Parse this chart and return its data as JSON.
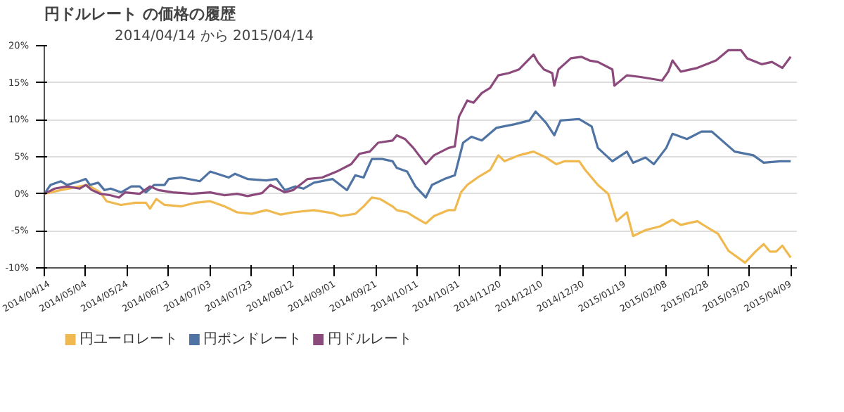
{
  "chart_data": {
    "type": "line",
    "title": "円ドルレート の価格の履歴",
    "subtitle": "2014/04/14 から 2015/04/14",
    "xlim": [
      "2014-04-14",
      "2015-04-12"
    ],
    "xticks": [
      {
        "value": "2014-04-14",
        "label": "2014/04/14"
      },
      {
        "value": "2014-05-04",
        "label": "2014/05/04"
      },
      {
        "value": "2014-05-24",
        "label": "2014/05/24"
      },
      {
        "value": "2014-06-13",
        "label": "2014/06/13"
      },
      {
        "value": "2014-07-03",
        "label": "2014/07/03"
      },
      {
        "value": "2014-07-23",
        "label": "2014/07/23"
      },
      {
        "value": "2014-08-12",
        "label": "2014/08/12"
      },
      {
        "value": "2014-09-01",
        "label": "2014/09/01"
      },
      {
        "value": "2014-09-21",
        "label": "2014/09/21"
      },
      {
        "value": "2014-10-11",
        "label": "2014/10/11"
      },
      {
        "value": "2014-10-31",
        "label": "2014/10/31"
      },
      {
        "value": "2014-11-20",
        "label": "2014/11/20"
      },
      {
        "value": "2014-12-10",
        "label": "2014/12/10"
      },
      {
        "value": "2014-12-30",
        "label": "2014/12/30"
      },
      {
        "value": "2015-01-19",
        "label": "2015/01/19"
      },
      {
        "value": "2015-02-08",
        "label": "2015/02/08"
      },
      {
        "value": "2015-02-28",
        "label": "2015/02/28"
      },
      {
        "value": "2015-03-20",
        "label": "2015/03/20"
      },
      {
        "value": "2015-04-09",
        "label": "2015/04/09"
      }
    ],
    "ylim": [
      -10,
      20
    ],
    "yticks": [
      {
        "value": -10,
        "label": "-10%"
      },
      {
        "value": -5,
        "label": "-5%"
      },
      {
        "value": 0,
        "label": "0%"
      },
      {
        "value": 5,
        "label": "5%"
      },
      {
        "value": 10,
        "label": "10%"
      },
      {
        "value": 15,
        "label": "15%"
      },
      {
        "value": 20,
        "label": "20%"
      }
    ],
    "grid": "y",
    "legend": "bottom",
    "marker": "none",
    "line_style": "solid",
    "series": [
      {
        "name": "円ユーロレート",
        "color": "#f0b94f",
        "x": [
          "2014-04-14",
          "2014-04-22",
          "2014-05-01",
          "2014-05-05",
          "2014-05-11",
          "2014-05-14",
          "2014-05-21",
          "2014-05-28",
          "2014-06-02",
          "2014-06-04",
          "2014-06-07",
          "2014-06-11",
          "2014-06-19",
          "2014-06-26",
          "2014-07-03",
          "2014-07-10",
          "2014-07-16",
          "2014-07-23",
          "2014-07-30",
          "2014-08-06",
          "2014-08-12",
          "2014-08-22",
          "2014-08-31",
          "2014-09-04",
          "2014-09-11",
          "2014-09-15",
          "2014-09-19",
          "2014-09-23",
          "2014-09-29",
          "2014-10-01",
          "2014-10-06",
          "2014-10-10",
          "2014-10-15",
          "2014-10-19",
          "2014-10-26",
          "2014-10-29",
          "2014-11-01",
          "2014-11-04",
          "2014-11-09",
          "2014-11-15",
          "2014-11-19",
          "2014-11-22",
          "2014-11-29",
          "2014-12-06",
          "2014-12-12",
          "2014-12-17",
          "2014-12-21",
          "2014-12-28",
          "2014-12-31",
          "2015-01-06",
          "2015-01-11",
          "2015-01-15",
          "2015-01-20",
          "2015-01-23",
          "2015-01-29",
          "2015-02-05",
          "2015-02-11",
          "2015-02-15",
          "2015-02-23",
          "2015-02-27",
          "2015-03-05",
          "2015-03-10",
          "2015-03-18",
          "2015-03-23",
          "2015-03-27",
          "2015-03-30",
          "2015-04-02",
          "2015-04-05",
          "2015-04-09"
        ],
        "values": [
          0,
          0.5,
          1.0,
          1.2,
          0.2,
          -1.0,
          -1.5,
          -1.2,
          -1.2,
          -2.0,
          -0.7,
          -1.5,
          -1.7,
          -1.2,
          -1.0,
          -1.7,
          -2.5,
          -2.7,
          -2.2,
          -2.8,
          -2.5,
          -2.2,
          -2.6,
          -3.0,
          -2.7,
          -1.7,
          -0.5,
          -0.7,
          -1.7,
          -2.2,
          -2.5,
          -3.2,
          -4.0,
          -3.0,
          -2.2,
          -2.2,
          0.2,
          1.2,
          2.2,
          3.2,
          5.2,
          4.4,
          5.2,
          5.7,
          4.9,
          4.0,
          4.4,
          4.4,
          3.2,
          1.2,
          0,
          -3.7,
          -2.5,
          -5.7,
          -4.9,
          -4.4,
          -3.5,
          -4.2,
          -3.7,
          -4.4,
          -5.4,
          -7.7,
          -9.3,
          -7.8,
          -6.8,
          -7.8,
          -7.8,
          -7.0,
          -8.6
        ]
      },
      {
        "name": "円ポンドレート",
        "color": "#4f74a3",
        "x": [
          "2014-04-14",
          "2014-04-17",
          "2014-04-22",
          "2014-04-25",
          "2014-05-01",
          "2014-05-04",
          "2014-05-06",
          "2014-05-10",
          "2014-05-13",
          "2014-05-16",
          "2014-05-21",
          "2014-05-26",
          "2014-05-30",
          "2014-06-02",
          "2014-06-06",
          "2014-06-11",
          "2014-06-13",
          "2014-06-19",
          "2014-06-28",
          "2014-07-03",
          "2014-07-12",
          "2014-07-15",
          "2014-07-21",
          "2014-07-30",
          "2014-08-04",
          "2014-08-08",
          "2014-08-13",
          "2014-08-17",
          "2014-08-22",
          "2014-08-31",
          "2014-09-07",
          "2014-09-11",
          "2014-09-15",
          "2014-09-19",
          "2014-09-24",
          "2014-09-29",
          "2014-10-01",
          "2014-10-06",
          "2014-10-10",
          "2014-10-15",
          "2014-10-18",
          "2014-10-24",
          "2014-10-29",
          "2014-11-02",
          "2014-11-06",
          "2014-11-11",
          "2014-11-18",
          "2014-11-27",
          "2014-12-04",
          "2014-12-07",
          "2014-12-12",
          "2014-12-16",
          "2014-12-19",
          "2014-12-28",
          "2015-01-03",
          "2015-01-06",
          "2015-01-13",
          "2015-01-20",
          "2015-01-23",
          "2015-01-29",
          "2015-02-02",
          "2015-02-08",
          "2015-02-11",
          "2015-02-18",
          "2015-02-25",
          "2015-03-02",
          "2015-03-13",
          "2015-03-22",
          "2015-03-27",
          "2015-04-04",
          "2015-04-09"
        ],
        "values": [
          0,
          1.2,
          1.7,
          1.2,
          1.7,
          2.0,
          1.2,
          1.5,
          0.5,
          0.7,
          0.2,
          1.0,
          1.0,
          0.2,
          1.2,
          1.2,
          2.0,
          2.2,
          1.7,
          3.0,
          2.2,
          2.7,
          2.0,
          1.8,
          2.0,
          0.5,
          1.0,
          0.7,
          1.5,
          2.0,
          0.5,
          2.5,
          2.2,
          4.7,
          4.7,
          4.4,
          3.5,
          3.0,
          1.0,
          -0.5,
          1.2,
          2.0,
          2.5,
          6.9,
          7.7,
          7.2,
          8.9,
          9.4,
          9.9,
          11.1,
          9.6,
          7.9,
          9.9,
          10.1,
          9.1,
          6.2,
          4.4,
          5.7,
          4.2,
          4.9,
          4.0,
          6.2,
          8.1,
          7.4,
          8.4,
          8.4,
          5.7,
          5.2,
          4.2,
          4.4,
          4.4
        ]
      },
      {
        "name": "円ドルレート",
        "color": "#8c4a7c",
        "x": [
          "2014-04-14",
          "2014-04-19",
          "2014-04-25",
          "2014-05-01",
          "2014-05-04",
          "2014-05-07",
          "2014-05-11",
          "2014-05-16",
          "2014-05-20",
          "2014-05-23",
          "2014-05-30",
          "2014-06-04",
          "2014-06-08",
          "2014-06-15",
          "2014-06-24",
          "2014-07-03",
          "2014-07-10",
          "2014-07-16",
          "2014-07-21",
          "2014-07-28",
          "2014-08-01",
          "2014-08-08",
          "2014-08-12",
          "2014-08-19",
          "2014-08-26",
          "2014-09-02",
          "2014-09-09",
          "2014-09-13",
          "2014-09-18",
          "2014-09-22",
          "2014-09-29",
          "2014-10-01",
          "2014-10-05",
          "2014-10-09",
          "2014-10-15",
          "2014-10-19",
          "2014-10-26",
          "2014-10-29",
          "2014-10-31",
          "2014-11-04",
          "2014-11-07",
          "2014-11-11",
          "2014-11-15",
          "2014-11-19",
          "2014-11-24",
          "2014-11-29",
          "2014-12-06",
          "2014-12-08",
          "2014-12-11",
          "2014-12-15",
          "2014-12-16",
          "2014-12-18",
          "2014-12-24",
          "2014-12-29",
          "2015-01-02",
          "2015-01-06",
          "2015-01-13",
          "2015-01-14",
          "2015-01-20",
          "2015-01-26",
          "2015-02-06",
          "2015-02-09",
          "2015-02-11",
          "2015-02-15",
          "2015-02-23",
          "2015-03-04",
          "2015-03-10",
          "2015-03-16",
          "2015-03-19",
          "2015-03-26",
          "2015-03-31",
          "2015-04-05",
          "2015-04-09"
        ],
        "values": [
          0,
          0.7,
          1.0,
          0.7,
          1.2,
          0.5,
          0,
          -0.2,
          -0.5,
          0.2,
          0,
          1.0,
          0.5,
          0.2,
          0,
          0.2,
          -0.2,
          0,
          -0.3,
          0.1,
          1.2,
          0.2,
          0.5,
          2.0,
          2.2,
          3.0,
          4.0,
          5.4,
          5.7,
          6.9,
          7.2,
          7.9,
          7.4,
          6.2,
          4.0,
          5.2,
          6.2,
          6.4,
          10.4,
          12.6,
          12.3,
          13.6,
          14.3,
          16.0,
          16.3,
          16.8,
          18.8,
          17.8,
          16.8,
          16.3,
          14.6,
          16.8,
          18.3,
          18.5,
          18.0,
          17.8,
          16.8,
          14.6,
          16.0,
          15.8,
          15.3,
          16.5,
          18.0,
          16.5,
          17.0,
          18.0,
          19.4,
          19.4,
          18.3,
          17.5,
          17.8,
          17.0,
          18.5
        ]
      }
    ]
  }
}
